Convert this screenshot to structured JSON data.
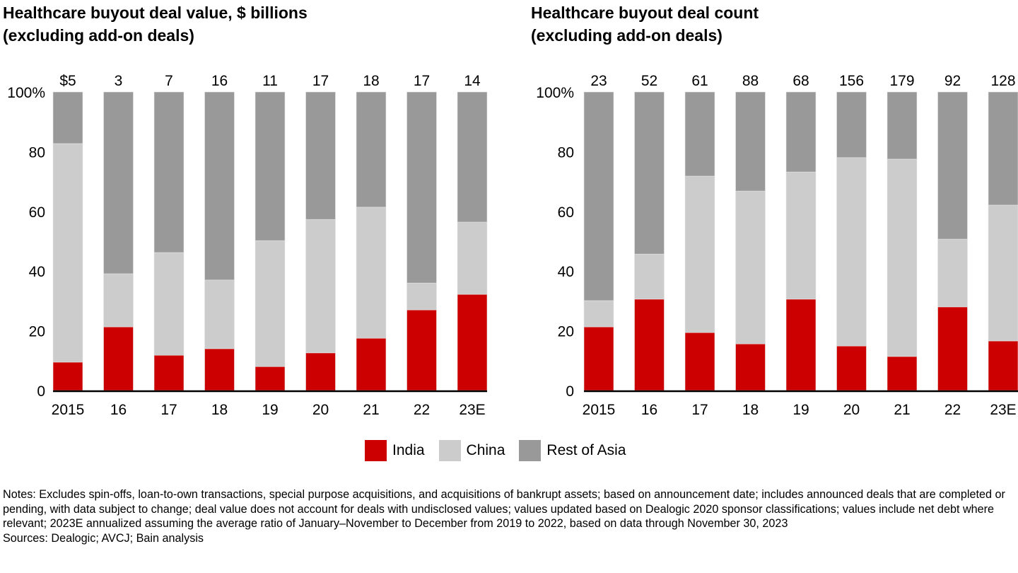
{
  "colors": {
    "India": "#cc0000",
    "China": "#cccccc",
    "Rest of Asia": "#999999",
    "axis": "#000000"
  },
  "legend": [
    {
      "name": "India",
      "color": "#cc0000"
    },
    {
      "name": "China",
      "color": "#cccccc"
    },
    {
      "name": "Rest of Asia",
      "color": "#999999"
    }
  ],
  "notes": "Notes: Excludes spin-offs, loan-to-own transactions, special purpose acquisitions, and acquisitions of bankrupt assets; based on announcement date; includes announced deals that are completed or pending, with data subject to change; deal value does not account for deals with undisclosed values; values updated based on Dealogic 2020 sponsor classifications; values include net debt where relevant; 2023E annualized assuming the average ratio of January–November to December from 2019 to 2022, based on data through November 30, 2023",
  "sources": "Sources: Dealogic; AVCJ; Bain analysis",
  "chart_data": [
    {
      "type": "bar",
      "stacked": "percent",
      "title": "Healthcare buyout deal value, $ billions",
      "subtitle": "(excluding add-on deals)",
      "categories": [
        "2015",
        "16",
        "17",
        "18",
        "19",
        "20",
        "21",
        "22",
        "23E"
      ],
      "totals": [
        "$5",
        "3",
        "7",
        "16",
        "11",
        "17",
        "18",
        "17",
        "14"
      ],
      "series": [
        {
          "name": "India",
          "values": [
            9.5,
            21.3,
            11.8,
            14.0,
            8.0,
            12.6,
            17.5,
            27.0,
            32.2
          ]
        },
        {
          "name": "China",
          "values": [
            73.2,
            17.8,
            34.4,
            23.0,
            42.2,
            44.7,
            43.9,
            9.0,
            24.2
          ]
        },
        {
          "name": "Rest of Asia",
          "values": [
            17.3,
            60.9,
            53.8,
            63.0,
            49.8,
            42.7,
            38.6,
            64.0,
            43.6
          ]
        }
      ],
      "ylim": [
        0,
        100
      ],
      "yticks": [
        "0",
        "20",
        "40",
        "60",
        "80",
        "100%"
      ],
      "xlabel": "",
      "ylabel": "",
      "grid": false,
      "legend": "bottom-center"
    },
    {
      "type": "bar",
      "stacked": "percent",
      "title": "Healthcare buyout deal count",
      "subtitle": "(excluding add-on deals)",
      "categories": [
        "2015",
        "16",
        "17",
        "18",
        "19",
        "20",
        "21",
        "22",
        "23E"
      ],
      "totals": [
        "23",
        "52",
        "61",
        "88",
        "68",
        "156",
        "179",
        "92",
        "128"
      ],
      "series": [
        {
          "name": "India",
          "values": [
            21.3,
            30.6,
            19.4,
            15.6,
            30.6,
            14.9,
            11.4,
            28.0,
            16.6
          ]
        },
        {
          "name": "China",
          "values": [
            8.8,
            15.1,
            52.4,
            51.2,
            42.6,
            63.1,
            66.1,
            22.7,
            45.5
          ]
        },
        {
          "name": "Rest of Asia",
          "values": [
            69.9,
            54.3,
            28.2,
            33.2,
            26.8,
            22.0,
            22.5,
            49.3,
            37.9
          ]
        }
      ],
      "ylim": [
        0,
        100
      ],
      "yticks": [
        "0",
        "20",
        "40",
        "60",
        "80",
        "100%"
      ],
      "xlabel": "",
      "ylabel": "",
      "grid": false,
      "legend": "bottom-center"
    }
  ]
}
